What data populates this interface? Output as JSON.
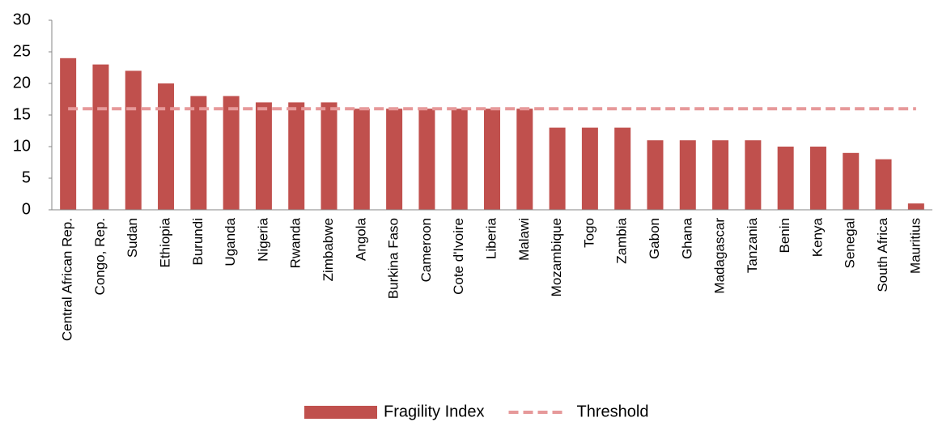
{
  "chart_data": {
    "type": "bar",
    "categories": [
      "Central African Rep.",
      "Congo, Rep.",
      "Sudan",
      "Ethiopia",
      "Burundi",
      "Uganda",
      "Nigeria",
      "Rwanda",
      "Zimbabwe",
      "Angola",
      "Burkina Faso",
      "Cameroon",
      "Cote d'Ivoire",
      "Liberia",
      "Malawi",
      "Mozambique",
      "Togo",
      "Zambia",
      "Gabon",
      "Ghana",
      "Madagascar",
      "Tanzania",
      "Benin",
      "Kenya",
      "Senegal",
      "South Africa",
      "Mauritius"
    ],
    "series": [
      {
        "name": "Fragility Index",
        "type": "bar",
        "color": "#c0504d",
        "values": [
          24,
          23,
          22,
          20,
          18,
          18,
          17,
          17,
          17,
          16,
          16,
          16,
          16,
          16,
          16,
          13,
          13,
          13,
          11,
          11,
          11,
          11,
          10,
          10,
          9,
          8,
          1
        ]
      },
      {
        "name": "Threshold",
        "type": "line",
        "dashed": true,
        "color": "#e6999a",
        "values": [
          16,
          16,
          16,
          16,
          16,
          16,
          16,
          16,
          16,
          16,
          16,
          16,
          16,
          16,
          16,
          16,
          16,
          16,
          16,
          16,
          16,
          16,
          16,
          16,
          16,
          16,
          16
        ]
      }
    ],
    "ylim": [
      0,
      30
    ],
    "yticks": [
      0,
      5,
      10,
      15,
      20,
      25,
      30
    ],
    "grid": false,
    "legend": "bottom"
  }
}
